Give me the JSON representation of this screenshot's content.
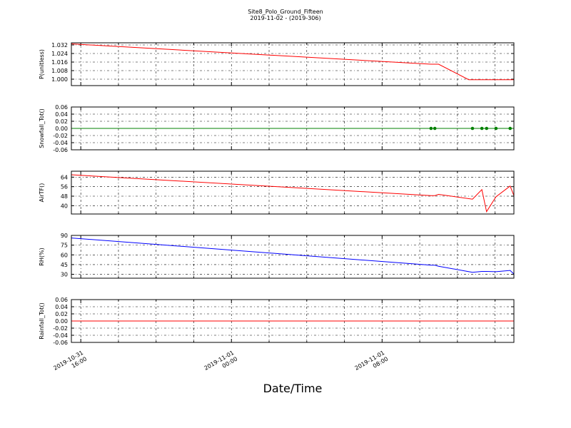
{
  "figure": {
    "title": "Site8_Polo_Ground_Fifteen",
    "subtitle": "2019-11-02 - (2019-306)",
    "xlabel": "Date/Time",
    "x_tick_labels": [
      [
        "2019-10-31",
        "16:00"
      ],
      [
        "2019-11-01",
        "00:00"
      ],
      [
        "2019-11-01",
        "08:00"
      ]
    ]
  },
  "chart_data": [
    {
      "type": "line",
      "ylabel": "P(unitless)",
      "ylim": [
        0.994,
        1.034
      ],
      "yticks": [
        "1.000",
        "1.008",
        "1.016",
        "1.024",
        "1.032"
      ],
      "color": "#ff0000",
      "grid": true,
      "points": [
        [
          15.5,
          1.033
        ],
        [
          34.6,
          1.014
        ],
        [
          34.8,
          1.014
        ],
        [
          35.0,
          1.014
        ],
        [
          36.6,
          0.9995
        ],
        [
          37.0,
          0.9995
        ],
        [
          37.5,
          0.9995
        ],
        [
          38.0,
          0.9995
        ],
        [
          39.0,
          0.9995
        ]
      ]
    },
    {
      "type": "scatter-line",
      "ylabel": "Snowfall_Tot()",
      "ylim": [
        -0.06,
        0.06
      ],
      "yticks": [
        "-0.06",
        "-0.04",
        "-0.02",
        "0.00",
        "0.02",
        "0.04",
        "0.06"
      ],
      "color": "#008000",
      "grid": true,
      "points": [
        [
          15.5,
          0.0
        ],
        [
          39.0,
          0.0
        ]
      ],
      "markers": [
        [
          34.6,
          0.0
        ],
        [
          34.8,
          0.0
        ],
        [
          36.8,
          0.0
        ],
        [
          37.3,
          0.0
        ],
        [
          37.55,
          0.0
        ],
        [
          38.05,
          0.0
        ],
        [
          38.8,
          0.0
        ]
      ]
    },
    {
      "type": "line",
      "ylabel": "AirTF()",
      "ylim": [
        33,
        69
      ],
      "yticks": [
        "40",
        "48",
        "56",
        "64"
      ],
      "color": "#ff0000",
      "grid": true,
      "points": [
        [
          15.5,
          66
        ],
        [
          34.6,
          48.5
        ],
        [
          34.8,
          48.5
        ],
        [
          35.0,
          49.5
        ],
        [
          36.8,
          45.5
        ],
        [
          37.3,
          53.5
        ],
        [
          37.55,
          35
        ],
        [
          38.05,
          47.5
        ],
        [
          38.8,
          56.5
        ],
        [
          39.0,
          48.5
        ]
      ]
    },
    {
      "type": "line",
      "ylabel": "RH(%)",
      "ylim": [
        24,
        90
      ],
      "yticks": [
        "30",
        "45",
        "60",
        "75",
        "90"
      ],
      "color": "#0000ff",
      "grid": true,
      "points": [
        [
          15.5,
          86
        ],
        [
          34.6,
          44
        ],
        [
          34.8,
          44
        ],
        [
          35.0,
          42.5
        ],
        [
          36.8,
          33
        ],
        [
          37.3,
          34.5
        ],
        [
          37.55,
          34.5
        ],
        [
          38.05,
          34
        ],
        [
          38.8,
          36
        ],
        [
          39.0,
          30.5
        ]
      ]
    },
    {
      "type": "line",
      "ylabel": "Rainfall_Tot()",
      "ylim": [
        -0.06,
        0.06
      ],
      "yticks": [
        "-0.06",
        "-0.04",
        "-0.02",
        "0.00",
        "0.02",
        "0.04",
        "0.06"
      ],
      "color": "#ff0000",
      "grid": true,
      "points": [
        [
          15.5,
          0.0
        ],
        [
          39.0,
          0.0
        ]
      ]
    }
  ]
}
